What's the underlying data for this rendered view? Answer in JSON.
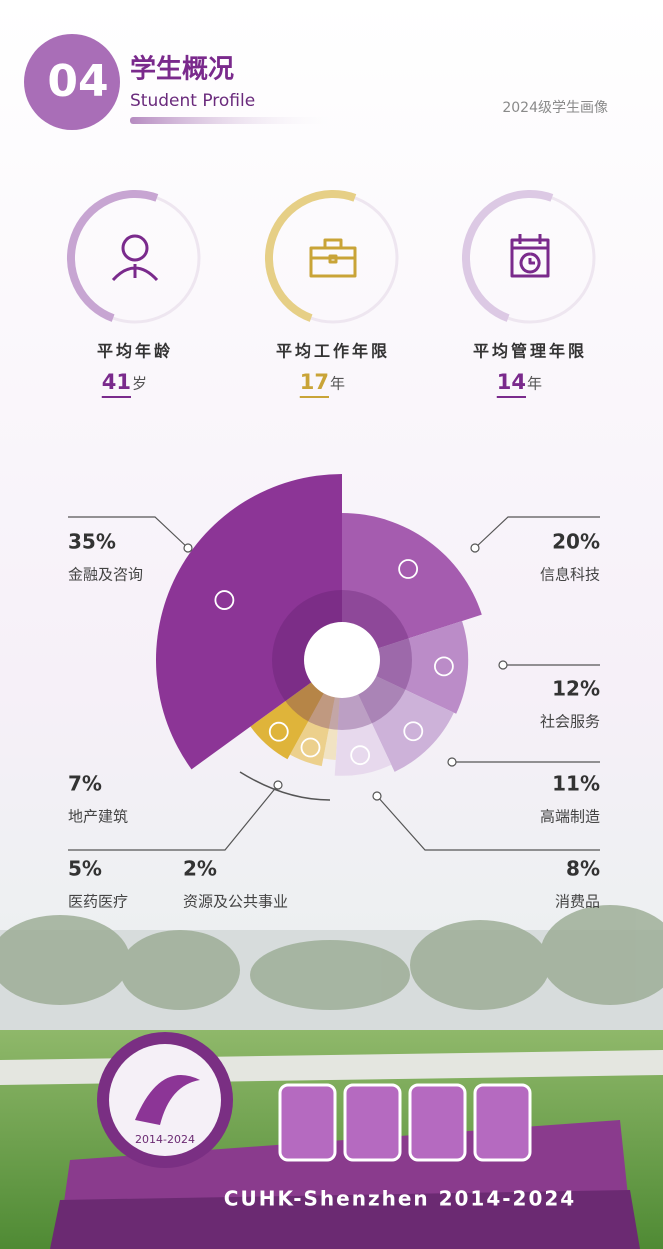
{
  "header": {
    "number": "04",
    "title": "学生概况",
    "subtitle": "Student Profile",
    "tag": "2024级学生画像"
  },
  "stats": [
    {
      "label": "平均年龄",
      "value": 41,
      "unit": "岁"
    },
    {
      "label": "平均工作年限",
      "value": 17,
      "unit": "年"
    },
    {
      "label": "平均管理年限",
      "value": 14,
      "unit": "年"
    }
  ],
  "chart_data": {
    "type": "pie",
    "categories": [
      "信息科技",
      "社会服务",
      "高端制造",
      "消费品",
      "资源及公共事业",
      "医药医疗",
      "地产建筑",
      "金融及咨询"
    ],
    "values": [
      20,
      12,
      11,
      8,
      2,
      5,
      7,
      35
    ],
    "value_labels": [
      "20%",
      "12%",
      "11%",
      "8%",
      "2%",
      "5%",
      "7%",
      "35%"
    ],
    "colors": [
      "#a55caf",
      "#bb8cc8",
      "#cdb2d9",
      "#e7d9ed",
      "#f1e3c3",
      "#ecd08c",
      "#dfb43a",
      "#8c3596"
    ]
  },
  "footer": {
    "sign": "CUHK-Shenzhen 2014-2024",
    "logo": "2014-2024"
  }
}
